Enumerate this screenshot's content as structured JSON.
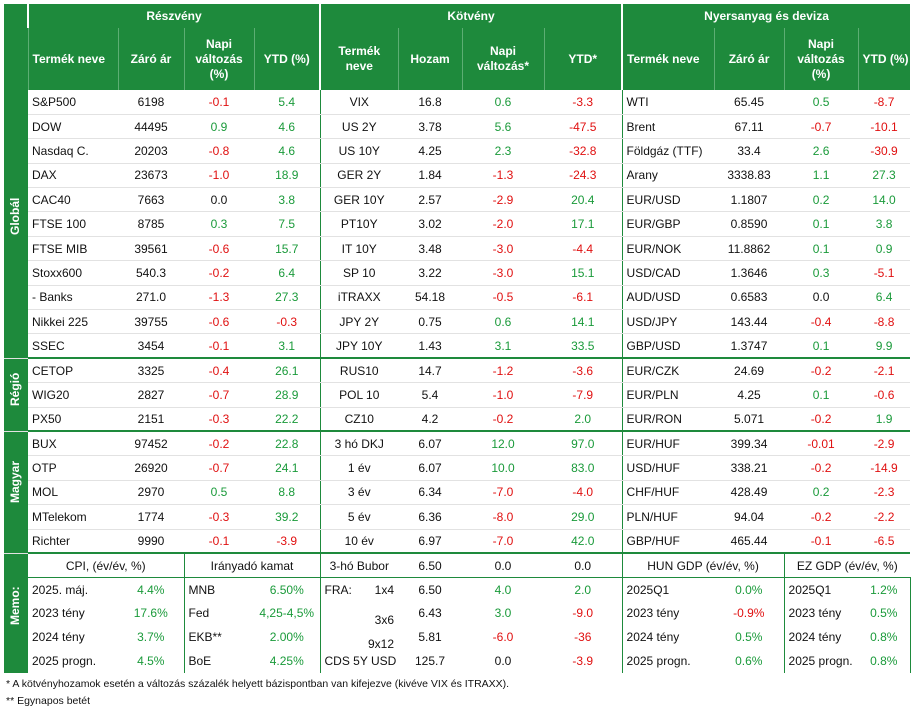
{
  "groups": [
    "Részvény",
    "Kötvény",
    "Nyersanyag és deviza"
  ],
  "columns": {
    "stocks": [
      "Termék neve",
      "Záró ár",
      "Napi változás (%)",
      "YTD (%)"
    ],
    "bonds": [
      "Termék neve",
      "Hozam",
      "Napi változás*",
      "YTD*"
    ],
    "commod": [
      "Termék neve",
      "Záró ár",
      "Napi változás (%)",
      "YTD (%)"
    ]
  },
  "sections": [
    {
      "label": "Globál",
      "rows": [
        {
          "s": [
            "S&P500",
            "6198",
            "-0.1",
            "5.4"
          ],
          "b": [
            "VIX",
            "16.8",
            "0.6",
            "-3.3"
          ],
          "c": [
            "WTI",
            "65.45",
            "0.5",
            "-8.7"
          ]
        },
        {
          "s": [
            "DOW",
            "44495",
            "0.9",
            "4.6"
          ],
          "b": [
            "US 2Y",
            "3.78",
            "5.6",
            "-47.5"
          ],
          "c": [
            "Brent",
            "67.11",
            "-0.7",
            "-10.1"
          ]
        },
        {
          "s": [
            "Nasdaq C.",
            "20203",
            "-0.8",
            "4.6"
          ],
          "b": [
            "US 10Y",
            "4.25",
            "2.3",
            "-32.8"
          ],
          "c": [
            "Földgáz (TTF)",
            "33.4",
            "2.6",
            "-30.9"
          ]
        },
        {
          "s": [
            "DAX",
            "23673",
            "-1.0",
            "18.9"
          ],
          "b": [
            "GER 2Y",
            "1.84",
            "-1.3",
            "-24.3"
          ],
          "c": [
            "Arany",
            "3338.83",
            "1.1",
            "27.3"
          ]
        },
        {
          "s": [
            "CAC40",
            "7663",
            "0.0",
            "3.8"
          ],
          "b": [
            "GER 10Y",
            "2.57",
            "-2.9",
            "20.4"
          ],
          "c": [
            "EUR/USD",
            "1.1807",
            "0.2",
            "14.0"
          ]
        },
        {
          "s": [
            "FTSE 100",
            "8785",
            "0.3",
            "7.5"
          ],
          "b": [
            "PT10Y",
            "3.02",
            "-2.0",
            "17.1"
          ],
          "c": [
            "EUR/GBP",
            "0.8590",
            "0.1",
            "3.8"
          ]
        },
        {
          "s": [
            "FTSE MIB",
            "39561",
            "-0.6",
            "15.7"
          ],
          "b": [
            "IT 10Y",
            "3.48",
            "-3.0",
            "-4.4"
          ],
          "c": [
            "EUR/NOK",
            "11.8862",
            "0.1",
            "0.9"
          ]
        },
        {
          "s": [
            "Stoxx600",
            "540.3",
            "-0.2",
            "6.4"
          ],
          "b": [
            "SP 10",
            "3.22",
            "-3.0",
            "15.1"
          ],
          "c": [
            "USD/CAD",
            "1.3646",
            "0.3",
            "-5.1"
          ]
        },
        {
          "s": [
            " - Banks",
            "271.0",
            "-1.3",
            "27.3"
          ],
          "b": [
            "iTRAXX",
            "54.18",
            "-0.5",
            "-6.1"
          ],
          "c": [
            "AUD/USD",
            "0.6583",
            "0.0",
            "6.4"
          ]
        },
        {
          "s": [
            "Nikkei 225",
            "39755",
            "-0.6",
            "-0.3"
          ],
          "b": [
            "JPY 2Y",
            "0.75",
            "0.6",
            "14.1"
          ],
          "c": [
            "USD/JPY",
            "143.44",
            "-0.4",
            "-8.8"
          ]
        },
        {
          "s": [
            "SSEC",
            "3454",
            "-0.1",
            "3.1"
          ],
          "b": [
            "JPY 10Y",
            "1.43",
            "3.1",
            "33.5"
          ],
          "c": [
            "GBP/USD",
            "1.3747",
            "0.1",
            "9.9"
          ]
        }
      ]
    },
    {
      "label": "Régió",
      "rows": [
        {
          "s": [
            "CETOP",
            "3325",
            "-0.4",
            "26.1"
          ],
          "b": [
            "RUS10",
            "14.7",
            "-1.2",
            "-3.6"
          ],
          "c": [
            "EUR/CZK",
            "24.69",
            "-0.2",
            "-2.1"
          ]
        },
        {
          "s": [
            "WIG20",
            "2827",
            "-0.7",
            "28.9"
          ],
          "b": [
            "POL 10",
            "5.4",
            "-1.0",
            "-7.9"
          ],
          "c": [
            "EUR/PLN",
            "4.25",
            "0.1",
            "-0.6"
          ]
        },
        {
          "s": [
            "PX50",
            "2151",
            "-0.3",
            "22.2"
          ],
          "b": [
            "CZ10",
            "4.2",
            "-0.2",
            "2.0"
          ],
          "c": [
            "EUR/RON",
            "5.071",
            "-0.2",
            "1.9"
          ]
        }
      ]
    },
    {
      "label": "Magyar",
      "rows": [
        {
          "s": [
            "BUX",
            "97452",
            "-0.2",
            "22.8"
          ],
          "b": [
            "3 hó DKJ",
            "6.07",
            "12.0",
            "97.0"
          ],
          "c": [
            "EUR/HUF",
            "399.34",
            "-0.01",
            "-2.9"
          ]
        },
        {
          "s": [
            "OTP",
            "26920",
            "-0.7",
            "24.1"
          ],
          "b": [
            "1 év",
            "6.07",
            "10.0",
            "83.0"
          ],
          "c": [
            "USD/HUF",
            "338.21",
            "-0.2",
            "-14.9"
          ]
        },
        {
          "s": [
            "MOL",
            "2970",
            "0.5",
            "8.8"
          ],
          "b": [
            "3 év",
            "6.34",
            "-7.0",
            "-4.0"
          ],
          "c": [
            "CHF/HUF",
            "428.49",
            "0.2",
            "-2.3"
          ]
        },
        {
          "s": [
            "MTelekom",
            "1774",
            "-0.3",
            "39.2"
          ],
          "b": [
            "5 év",
            "6.36",
            "-8.0",
            "29.0"
          ],
          "c": [
            "PLN/HUF",
            "94.04",
            "-0.2",
            "-2.2"
          ]
        },
        {
          "s": [
            "Richter",
            "9990",
            "-0.1",
            "-3.9"
          ],
          "b": [
            "10 év",
            "6.97",
            "-7.0",
            "42.0"
          ],
          "c": [
            "GBP/HUF",
            "465.44",
            "-0.1",
            "-6.5"
          ]
        }
      ]
    }
  ],
  "memo": {
    "label": "Memo:",
    "headers": [
      "CPI, (év/év, %)",
      "Irányadó kamat",
      "3-hó Bubor",
      "HUN GDP (év/év, %)",
      "EZ GDP (év/év, %)"
    ],
    "bubor": [
      "6.50",
      "0.0",
      "0.0"
    ],
    "rows": [
      {
        "cpi": [
          "2025. máj.",
          "4.4%"
        ],
        "rate": [
          "MNB",
          "6.50%"
        ],
        "fra": [
          "FRA:",
          "1x4",
          "6.50",
          "4.0",
          "2.0"
        ],
        "hun": [
          "2025Q1",
          "0.0%"
        ],
        "ez": [
          "2025Q1",
          "1.2%"
        ]
      },
      {
        "cpi": [
          "2023 tény",
          "17.6%"
        ],
        "rate": [
          "Fed",
          "4,25-4,5%"
        ],
        "fra": [
          "",
          "3x6",
          "6.43",
          "3.0",
          "-9.0"
        ],
        "hun": [
          "2023 tény",
          "-0.9%"
        ],
        "ez": [
          "2023 tény",
          "0.5%"
        ]
      },
      {
        "cpi": [
          "2024 tény",
          "3.7%"
        ],
        "rate": [
          "EKB**",
          "2.00%"
        ],
        "fra": [
          "",
          "9x12",
          "5.81",
          "-6.0",
          "-36"
        ],
        "hun": [
          "2024 tény",
          "0.5%"
        ],
        "ez": [
          "2024 tény",
          "0.8%"
        ]
      },
      {
        "cpi": [
          "2025 progn.",
          "4.5%"
        ],
        "rate": [
          "BoE",
          "4.25%"
        ],
        "fra": [
          "CDS 5Y USD",
          "",
          "125.7",
          "0.0",
          "-3.9"
        ],
        "hun": [
          "2025 progn.",
          "0.6%"
        ],
        "ez": [
          "2025 progn.",
          "0.8%"
        ]
      }
    ]
  },
  "notes": [
    "* A kötvényhozamok esetén a változás százalék helyett bázispontban van kifejezve (kivéve VIX és ITRAXX).",
    "** Egynapos betét"
  ],
  "colors": {
    "green": "#1e8a3c",
    "positive": "#1a9a3a",
    "negative": "#e01010"
  }
}
